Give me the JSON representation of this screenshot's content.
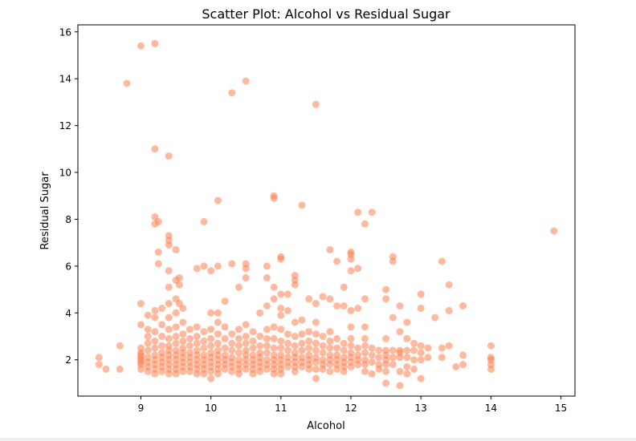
{
  "chart_data": {
    "type": "scatter",
    "title": "Scatter Plot: Alcohol vs Residual Sugar",
    "xlabel": "Alcohol",
    "ylabel": "Residual Sugar",
    "xlim": [
      8.1,
      15.2
    ],
    "ylim": [
      0.45,
      16.3
    ],
    "xticks": [
      "9",
      "10",
      "11",
      "12",
      "13",
      "14",
      "15"
    ],
    "yticks": [
      "2",
      "4",
      "6",
      "8",
      "10",
      "12",
      "14",
      "16"
    ],
    "grid": false,
    "legend": "none",
    "marker_color": "#ff7f50",
    "marker_alpha": 0.55,
    "points": [
      [
        8.4,
        2.1
      ],
      [
        8.4,
        1.8
      ],
      [
        8.5,
        1.6
      ],
      [
        8.7,
        1.6
      ],
      [
        8.7,
        2.6
      ],
      [
        8.8,
        13.8
      ],
      [
        9.0,
        15.4
      ],
      [
        9.0,
        1.6
      ],
      [
        9.0,
        1.8
      ],
      [
        9.0,
        1.9
      ],
      [
        9.0,
        2.0
      ],
      [
        9.0,
        2.1
      ],
      [
        9.0,
        2.2
      ],
      [
        9.0,
        2.3
      ],
      [
        9.0,
        2.5
      ],
      [
        9.0,
        3.5
      ],
      [
        9.0,
        4.4
      ],
      [
        9.1,
        1.5
      ],
      [
        9.1,
        1.7
      ],
      [
        9.1,
        1.9
      ],
      [
        9.1,
        2.1
      ],
      [
        9.1,
        2.4
      ],
      [
        9.1,
        2.7
      ],
      [
        9.1,
        3.0
      ],
      [
        9.1,
        3.3
      ],
      [
        9.1,
        3.9
      ],
      [
        9.2,
        15.5
      ],
      [
        9.2,
        11.0
      ],
      [
        9.2,
        8.1
      ],
      [
        9.2,
        7.8
      ],
      [
        9.2,
        4.1
      ],
      [
        9.2,
        3.8
      ],
      [
        9.2,
        3.2
      ],
      [
        9.2,
        2.8
      ],
      [
        9.2,
        2.5
      ],
      [
        9.2,
        2.2
      ],
      [
        9.2,
        2.0
      ],
      [
        9.2,
        1.8
      ],
      [
        9.2,
        1.6
      ],
      [
        9.2,
        1.4
      ],
      [
        9.25,
        7.9
      ],
      [
        9.25,
        6.6
      ],
      [
        9.25,
        6.1
      ],
      [
        9.3,
        4.2
      ],
      [
        9.3,
        3.5
      ],
      [
        9.3,
        3.0
      ],
      [
        9.3,
        2.6
      ],
      [
        9.3,
        2.3
      ],
      [
        9.3,
        2.1
      ],
      [
        9.3,
        1.9
      ],
      [
        9.3,
        1.7
      ],
      [
        9.3,
        1.5
      ],
      [
        9.4,
        10.7
      ],
      [
        9.4,
        7.3
      ],
      [
        9.4,
        7.1
      ],
      [
        9.4,
        6.9
      ],
      [
        9.4,
        5.8
      ],
      [
        9.4,
        5.1
      ],
      [
        9.4,
        4.4
      ],
      [
        9.4,
        3.8
      ],
      [
        9.4,
        3.3
      ],
      [
        9.4,
        2.9
      ],
      [
        9.4,
        2.6
      ],
      [
        9.4,
        2.4
      ],
      [
        9.4,
        2.2
      ],
      [
        9.4,
        2.0
      ],
      [
        9.4,
        1.8
      ],
      [
        9.4,
        1.6
      ],
      [
        9.4,
        1.4
      ],
      [
        9.5,
        6.7
      ],
      [
        9.5,
        5.4
      ],
      [
        9.5,
        4.6
      ],
      [
        9.5,
        4.0
      ],
      [
        9.5,
        3.4
      ],
      [
        9.5,
        3.0
      ],
      [
        9.5,
        2.7
      ],
      [
        9.5,
        2.4
      ],
      [
        9.5,
        2.2
      ],
      [
        9.5,
        2.0
      ],
      [
        9.5,
        1.8
      ],
      [
        9.5,
        1.6
      ],
      [
        9.5,
        1.4
      ],
      [
        9.55,
        5.5
      ],
      [
        9.55,
        5.2
      ],
      [
        9.55,
        4.4
      ],
      [
        9.6,
        4.2
      ],
      [
        9.6,
        3.6
      ],
      [
        9.6,
        3.1
      ],
      [
        9.6,
        2.8
      ],
      [
        9.6,
        2.5
      ],
      [
        9.6,
        2.3
      ],
      [
        9.6,
        2.1
      ],
      [
        9.6,
        1.9
      ],
      [
        9.6,
        1.7
      ],
      [
        9.6,
        1.5
      ],
      [
        9.7,
        3.3
      ],
      [
        9.7,
        2.9
      ],
      [
        9.7,
        2.6
      ],
      [
        9.7,
        2.3
      ],
      [
        9.7,
        2.1
      ],
      [
        9.7,
        1.9
      ],
      [
        9.7,
        1.7
      ],
      [
        9.7,
        1.5
      ],
      [
        9.8,
        5.9
      ],
      [
        9.8,
        3.4
      ],
      [
        9.8,
        3.0
      ],
      [
        9.8,
        2.7
      ],
      [
        9.8,
        2.4
      ],
      [
        9.8,
        2.2
      ],
      [
        9.8,
        2.0
      ],
      [
        9.8,
        1.8
      ],
      [
        9.8,
        1.6
      ],
      [
        9.8,
        1.4
      ],
      [
        9.9,
        7.9
      ],
      [
        9.9,
        6.0
      ],
      [
        9.9,
        3.2
      ],
      [
        9.9,
        2.8
      ],
      [
        9.9,
        2.5
      ],
      [
        9.9,
        2.2
      ],
      [
        9.9,
        2.0
      ],
      [
        9.9,
        1.8
      ],
      [
        9.9,
        1.6
      ],
      [
        9.9,
        1.4
      ],
      [
        10.0,
        5.8
      ],
      [
        10.0,
        4.0
      ],
      [
        10.0,
        3.3
      ],
      [
        10.0,
        2.9
      ],
      [
        10.0,
        2.6
      ],
      [
        10.0,
        2.3
      ],
      [
        10.0,
        2.1
      ],
      [
        10.0,
        1.9
      ],
      [
        10.0,
        1.7
      ],
      [
        10.0,
        1.5
      ],
      [
        10.0,
        1.2
      ],
      [
        10.1,
        8.8
      ],
      [
        10.1,
        6.0
      ],
      [
        10.1,
        4.0
      ],
      [
        10.1,
        3.6
      ],
      [
        10.1,
        3.1
      ],
      [
        10.1,
        2.7
      ],
      [
        10.1,
        2.4
      ],
      [
        10.1,
        2.2
      ],
      [
        10.1,
        2.0
      ],
      [
        10.1,
        1.8
      ],
      [
        10.1,
        1.6
      ],
      [
        10.1,
        1.4
      ],
      [
        10.2,
        4.5
      ],
      [
        10.2,
        3.4
      ],
      [
        10.2,
        2.9
      ],
      [
        10.2,
        2.5
      ],
      [
        10.2,
        2.2
      ],
      [
        10.2,
        2.0
      ],
      [
        10.2,
        1.8
      ],
      [
        10.2,
        1.6
      ],
      [
        10.3,
        13.4
      ],
      [
        10.3,
        6.1
      ],
      [
        10.3,
        3.1
      ],
      [
        10.3,
        2.7
      ],
      [
        10.3,
        2.4
      ],
      [
        10.3,
        2.1
      ],
      [
        10.3,
        1.9
      ],
      [
        10.3,
        1.7
      ],
      [
        10.3,
        1.5
      ],
      [
        10.4,
        5.1
      ],
      [
        10.4,
        3.3
      ],
      [
        10.4,
        2.9
      ],
      [
        10.4,
        2.6
      ],
      [
        10.4,
        2.3
      ],
      [
        10.4,
        2.0
      ],
      [
        10.4,
        1.8
      ],
      [
        10.4,
        1.6
      ],
      [
        10.4,
        1.4
      ],
      [
        10.5,
        13.9
      ],
      [
        10.5,
        6.1
      ],
      [
        10.5,
        5.9
      ],
      [
        10.5,
        5.5
      ],
      [
        10.5,
        3.5
      ],
      [
        10.5,
        3.0
      ],
      [
        10.5,
        2.7
      ],
      [
        10.5,
        2.4
      ],
      [
        10.5,
        2.2
      ],
      [
        10.5,
        2.0
      ],
      [
        10.5,
        1.8
      ],
      [
        10.5,
        1.6
      ],
      [
        10.6,
        3.2
      ],
      [
        10.6,
        2.8
      ],
      [
        10.6,
        2.5
      ],
      [
        10.6,
        2.2
      ],
      [
        10.6,
        2.0
      ],
      [
        10.6,
        1.8
      ],
      [
        10.6,
        1.6
      ],
      [
        10.6,
        1.4
      ],
      [
        10.7,
        4.0
      ],
      [
        10.7,
        3.0
      ],
      [
        10.7,
        2.6
      ],
      [
        10.7,
        2.3
      ],
      [
        10.7,
        2.1
      ],
      [
        10.7,
        1.9
      ],
      [
        10.7,
        1.7
      ],
      [
        10.7,
        1.5
      ],
      [
        10.8,
        6.0
      ],
      [
        10.8,
        5.5
      ],
      [
        10.8,
        4.3
      ],
      [
        10.8,
        3.3
      ],
      [
        10.8,
        2.9
      ],
      [
        10.8,
        2.6
      ],
      [
        10.8,
        2.3
      ],
      [
        10.8,
        2.0
      ],
      [
        10.8,
        1.8
      ],
      [
        10.8,
        1.6
      ],
      [
        10.9,
        9.0
      ],
      [
        10.9,
        8.9
      ],
      [
        10.9,
        5.1
      ],
      [
        10.9,
        4.6
      ],
      [
        10.9,
        3.4
      ],
      [
        10.9,
        2.9
      ],
      [
        10.9,
        2.5
      ],
      [
        10.9,
        2.2
      ],
      [
        10.9,
        2.0
      ],
      [
        10.9,
        1.8
      ],
      [
        10.9,
        1.6
      ],
      [
        10.9,
        1.4
      ],
      [
        11.0,
        6.4
      ],
      [
        11.0,
        6.3
      ],
      [
        11.0,
        4.8
      ],
      [
        11.0,
        4.2
      ],
      [
        11.0,
        3.9
      ],
      [
        11.0,
        3.3
      ],
      [
        11.0,
        2.8
      ],
      [
        11.0,
        2.5
      ],
      [
        11.0,
        2.2
      ],
      [
        11.0,
        2.0
      ],
      [
        11.0,
        1.8
      ],
      [
        11.0,
        1.6
      ],
      [
        11.0,
        1.4
      ],
      [
        11.1,
        4.8
      ],
      [
        11.1,
        4.1
      ],
      [
        11.1,
        3.1
      ],
      [
        11.1,
        2.7
      ],
      [
        11.1,
        2.4
      ],
      [
        11.1,
        2.1
      ],
      [
        11.1,
        1.9
      ],
      [
        11.1,
        1.7
      ],
      [
        11.2,
        5.6
      ],
      [
        11.2,
        5.4
      ],
      [
        11.2,
        5.2
      ],
      [
        11.2,
        3.6
      ],
      [
        11.2,
        3.0
      ],
      [
        11.2,
        2.6
      ],
      [
        11.2,
        2.3
      ],
      [
        11.2,
        2.1
      ],
      [
        11.2,
        1.9
      ],
      [
        11.2,
        1.7
      ],
      [
        11.2,
        1.5
      ],
      [
        11.3,
        8.6
      ],
      [
        11.3,
        3.7
      ],
      [
        11.3,
        3.1
      ],
      [
        11.3,
        2.7
      ],
      [
        11.3,
        2.4
      ],
      [
        11.3,
        2.1
      ],
      [
        11.3,
        1.9
      ],
      [
        11.3,
        1.7
      ],
      [
        11.4,
        4.6
      ],
      [
        11.4,
        3.2
      ],
      [
        11.4,
        2.8
      ],
      [
        11.4,
        2.5
      ],
      [
        11.4,
        2.2
      ],
      [
        11.4,
        2.0
      ],
      [
        11.4,
        1.8
      ],
      [
        11.4,
        1.6
      ],
      [
        11.5,
        12.9
      ],
      [
        11.5,
        4.4
      ],
      [
        11.5,
        3.6
      ],
      [
        11.5,
        3.1
      ],
      [
        11.5,
        2.7
      ],
      [
        11.5,
        2.4
      ],
      [
        11.5,
        2.1
      ],
      [
        11.5,
        1.9
      ],
      [
        11.5,
        1.6
      ],
      [
        11.5,
        1.2
      ],
      [
        11.6,
        4.7
      ],
      [
        11.6,
        3.0
      ],
      [
        11.6,
        2.6
      ],
      [
        11.6,
        2.3
      ],
      [
        11.6,
        2.0
      ],
      [
        11.6,
        1.8
      ],
      [
        11.6,
        1.6
      ],
      [
        11.7,
        6.7
      ],
      [
        11.7,
        4.6
      ],
      [
        11.7,
        3.2
      ],
      [
        11.7,
        2.8
      ],
      [
        11.7,
        2.5
      ],
      [
        11.7,
        2.2
      ],
      [
        11.7,
        2.0
      ],
      [
        11.7,
        1.8
      ],
      [
        11.7,
        1.5
      ],
      [
        11.8,
        6.2
      ],
      [
        11.8,
        4.3
      ],
      [
        11.8,
        2.9
      ],
      [
        11.8,
        2.5
      ],
      [
        11.8,
        2.2
      ],
      [
        11.8,
        2.0
      ],
      [
        11.8,
        1.8
      ],
      [
        11.8,
        1.6
      ],
      [
        11.9,
        5.1
      ],
      [
        11.9,
        4.3
      ],
      [
        11.9,
        2.7
      ],
      [
        11.9,
        2.4
      ],
      [
        11.9,
        2.1
      ],
      [
        11.9,
        1.9
      ],
      [
        11.9,
        1.7
      ],
      [
        11.9,
        1.5
      ],
      [
        12.0,
        6.6
      ],
      [
        12.0,
        6.5
      ],
      [
        12.0,
        6.3
      ],
      [
        12.0,
        5.8
      ],
      [
        12.0,
        4.1
      ],
      [
        12.0,
        3.4
      ],
      [
        12.0,
        2.9
      ],
      [
        12.0,
        2.6
      ],
      [
        12.0,
        2.3
      ],
      [
        12.0,
        2.1
      ],
      [
        12.0,
        1.9
      ],
      [
        12.0,
        1.7
      ],
      [
        12.1,
        8.3
      ],
      [
        12.1,
        5.9
      ],
      [
        12.1,
        4.2
      ],
      [
        12.1,
        2.5
      ],
      [
        12.1,
        2.2
      ],
      [
        12.1,
        2.0
      ],
      [
        12.1,
        1.8
      ],
      [
        12.2,
        7.8
      ],
      [
        12.2,
        4.6
      ],
      [
        12.2,
        3.4
      ],
      [
        12.2,
        2.9
      ],
      [
        12.2,
        2.6
      ],
      [
        12.2,
        2.3
      ],
      [
        12.2,
        2.0
      ],
      [
        12.2,
        1.8
      ],
      [
        12.2,
        1.5
      ],
      [
        12.3,
        8.3
      ],
      [
        12.3,
        2.5
      ],
      [
        12.3,
        2.2
      ],
      [
        12.3,
        1.9
      ],
      [
        12.3,
        1.4
      ],
      [
        12.4,
        2.4
      ],
      [
        12.4,
        2.1
      ],
      [
        12.4,
        1.8
      ],
      [
        12.4,
        1.6
      ],
      [
        12.5,
        5.0
      ],
      [
        12.5,
        4.6
      ],
      [
        12.5,
        2.9
      ],
      [
        12.5,
        2.4
      ],
      [
        12.5,
        2.2
      ],
      [
        12.5,
        2.0
      ],
      [
        12.5,
        1.8
      ],
      [
        12.5,
        1.5
      ],
      [
        12.5,
        1.0
      ],
      [
        12.6,
        6.4
      ],
      [
        12.6,
        6.2
      ],
      [
        12.6,
        3.8
      ],
      [
        12.6,
        2.4
      ],
      [
        12.6,
        2.1
      ],
      [
        12.6,
        1.8
      ],
      [
        12.7,
        4.3
      ],
      [
        12.7,
        3.2
      ],
      [
        12.7,
        2.4
      ],
      [
        12.7,
        2.3
      ],
      [
        12.7,
        2.1
      ],
      [
        12.7,
        1.5
      ],
      [
        12.7,
        0.9
      ],
      [
        12.8,
        3.6
      ],
      [
        12.8,
        2.9
      ],
      [
        12.8,
        2.4
      ],
      [
        12.8,
        2.1
      ],
      [
        12.8,
        1.7
      ],
      [
        12.8,
        1.4
      ],
      [
        12.9,
        2.7
      ],
      [
        12.9,
        2.4
      ],
      [
        12.9,
        2.0
      ],
      [
        12.9,
        1.6
      ],
      [
        13.0,
        4.8
      ],
      [
        13.0,
        4.2
      ],
      [
        13.0,
        2.6
      ],
      [
        13.0,
        2.3
      ],
      [
        13.0,
        2.0
      ],
      [
        13.0,
        1.2
      ],
      [
        13.1,
        2.5
      ],
      [
        13.1,
        2.1
      ],
      [
        13.2,
        3.8
      ],
      [
        13.3,
        6.2
      ],
      [
        13.3,
        2.5
      ],
      [
        13.3,
        2.1
      ],
      [
        13.4,
        5.2
      ],
      [
        13.4,
        4.1
      ],
      [
        13.4,
        2.6
      ],
      [
        13.5,
        1.7
      ],
      [
        13.6,
        4.3
      ],
      [
        13.6,
        2.2
      ],
      [
        13.6,
        1.8
      ],
      [
        14.0,
        2.6
      ],
      [
        14.0,
        2.1
      ],
      [
        14.0,
        2.0
      ],
      [
        14.0,
        1.8
      ],
      [
        14.0,
        1.6
      ],
      [
        14.9,
        7.5
      ]
    ]
  }
}
